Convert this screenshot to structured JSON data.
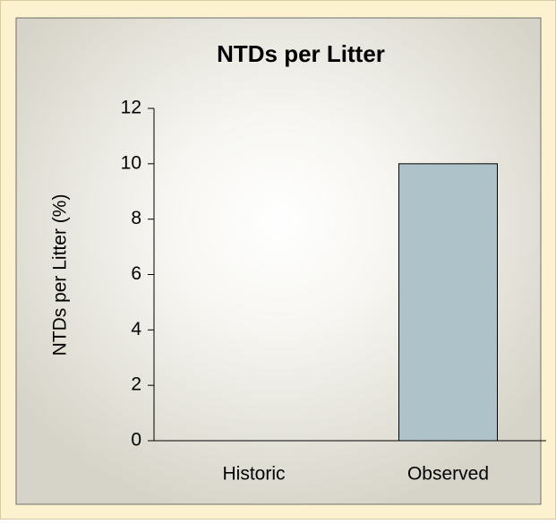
{
  "chart_data": {
    "type": "bar",
    "title": "NTDs per Litter",
    "y_label": "NTDs per Litter (%)",
    "categories": [
      "Historic",
      "Observed"
    ],
    "values": [
      0,
      10
    ],
    "color": "#adc3c9",
    "ylim": [
      0,
      12
    ],
    "yticks": [
      0,
      2,
      4,
      6,
      8,
      10,
      12
    ],
    "grid": false
  }
}
